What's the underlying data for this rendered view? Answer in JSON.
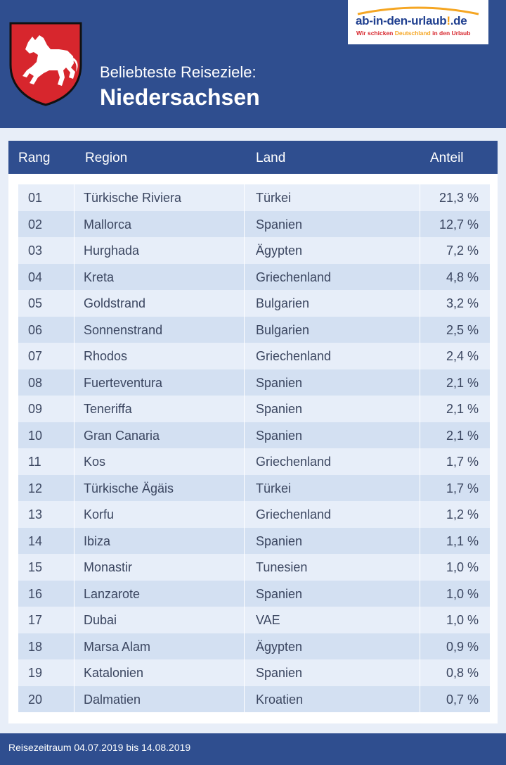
{
  "header": {
    "subtitle": "Beliebteste Reiseziele:",
    "title": "Niedersachsen",
    "logo": {
      "brand": "ab-in-den-urlaub",
      "brand_bang": "!",
      "brand_tld": "de",
      "tagline_part1": "Wir schicken ",
      "tagline_part2": "Deutschland",
      "tagline_part3": " in den Urlaub"
    }
  },
  "colors": {
    "header_blue": "#2f4e8f",
    "crest_red": "#d7262d",
    "row_light": "#e7eef9",
    "row_dark": "#d3e0f2"
  },
  "table": {
    "headers": {
      "rank": "Rang",
      "region": "Region",
      "land": "Land",
      "share": "Anteil"
    },
    "rows": [
      {
        "rank": "01",
        "region": "Türkische Riviera",
        "land": "Türkei",
        "share": "21,3 %"
      },
      {
        "rank": "02",
        "region": "Mallorca",
        "land": "Spanien",
        "share": "12,7 %"
      },
      {
        "rank": "03",
        "region": "Hurghada",
        "land": "Ägypten",
        "share": "7,2 %"
      },
      {
        "rank": "04",
        "region": "Kreta",
        "land": "Griechenland",
        "share": "4,8 %"
      },
      {
        "rank": "05",
        "region": "Goldstrand",
        "land": "Bulgarien",
        "share": "3,2 %"
      },
      {
        "rank": "06",
        "region": "Sonnenstrand",
        "land": "Bulgarien",
        "share": "2,5 %"
      },
      {
        "rank": "07",
        "region": "Rhodos",
        "land": "Griechenland",
        "share": "2,4 %"
      },
      {
        "rank": "08",
        "region": "Fuerteventura",
        "land": "Spanien",
        "share": "2,1 %"
      },
      {
        "rank": "09",
        "region": "Teneriffa",
        "land": "Spanien",
        "share": "2,1 %"
      },
      {
        "rank": "10",
        "region": "Gran Canaria",
        "land": "Spanien",
        "share": "2,1 %"
      },
      {
        "rank": "11",
        "region": "Kos",
        "land": "Griechenland",
        "share": "1,7 %"
      },
      {
        "rank": "12",
        "region": "Türkische Ägäis",
        "land": "Türkei",
        "share": "1,7 %"
      },
      {
        "rank": "13",
        "region": "Korfu",
        "land": "Griechenland",
        "share": "1,2 %"
      },
      {
        "rank": "14",
        "region": "Ibiza",
        "land": "Spanien",
        "share": "1,1 %"
      },
      {
        "rank": "15",
        "region": "Monastir",
        "land": "Tunesien",
        "share": "1,0 %"
      },
      {
        "rank": "16",
        "region": "Lanzarote",
        "land": "Spanien",
        "share": "1,0 %"
      },
      {
        "rank": "17",
        "region": "Dubai",
        "land": "VAE",
        "share": "1,0 %"
      },
      {
        "rank": "18",
        "region": "Marsa Alam",
        "land": "Ägypten",
        "share": "0,9 %"
      },
      {
        "rank": "19",
        "region": "Katalonien",
        "land": "Spanien",
        "share": "0,8 %"
      },
      {
        "rank": "20",
        "region": "Dalmatien",
        "land": "Kroatien",
        "share": "0,7 %"
      }
    ]
  },
  "footer": {
    "period": "Reisezeitraum 04.07.2019 bis 14.08.2019"
  }
}
